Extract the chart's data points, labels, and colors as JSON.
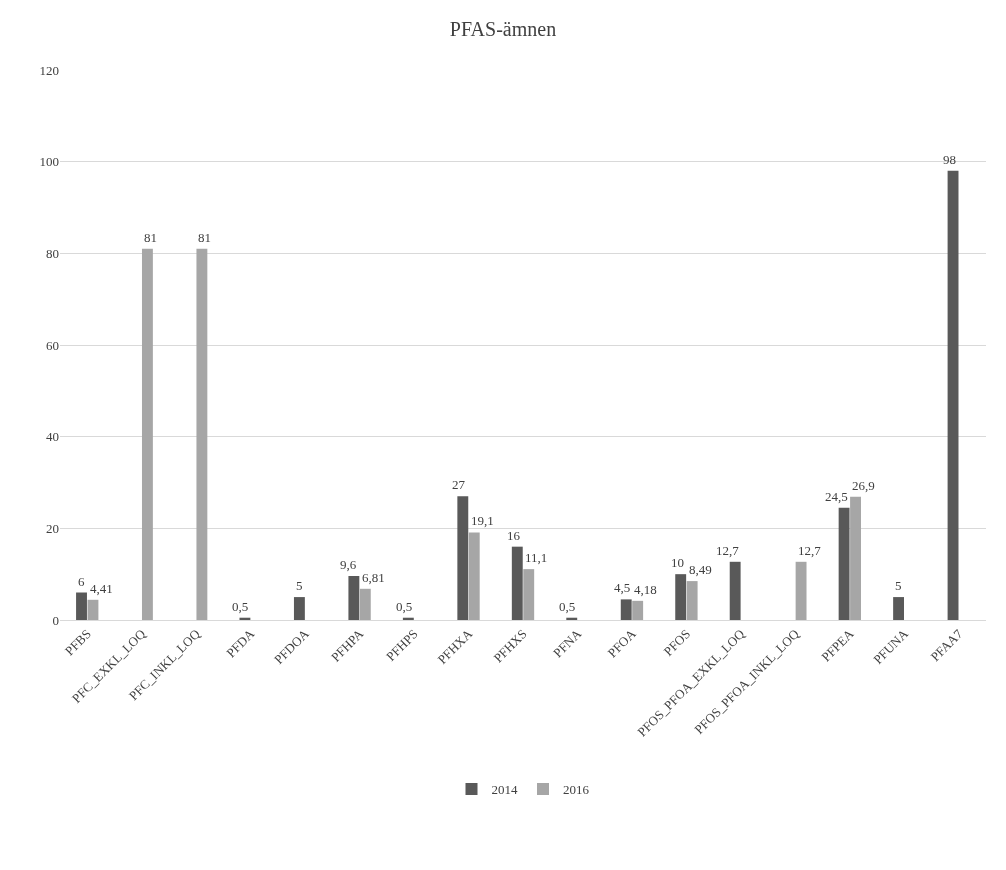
{
  "chart_data": {
    "type": "bar",
    "title": "PFAS-ämnen",
    "categories": [
      "PFBS",
      "PFC_EXKL_LOQ",
      "PFC_INKL_LOQ",
      "PFDA",
      "PFDOA",
      "PFHPA",
      "PFHPS",
      "PFHXA",
      "PFHXS",
      "PFNA",
      "PFOA",
      "PFOS",
      "PFOS_PFOA_EXKL_LOQ",
      "PFOS_PFOA_INKL_LOQ",
      "PFPEA",
      "PFUNA",
      "PFAA7"
    ],
    "series": [
      {
        "name": "2014",
        "color": "#595959",
        "values": [
          6,
          null,
          null,
          0.5,
          5,
          9.6,
          0.5,
          27,
          16,
          0.5,
          4.5,
          10,
          12.7,
          null,
          24.5,
          5,
          98
        ],
        "value_labels": [
          "6",
          null,
          null,
          "0,5",
          "5",
          "9,6",
          "0,5",
          "27",
          "16",
          "0,5",
          "4,5",
          "10",
          "12,7",
          null,
          "24,5",
          "5",
          "98"
        ]
      },
      {
        "name": "2016",
        "color": "#a6a6a6",
        "values": [
          4.41,
          81,
          81,
          null,
          null,
          6.81,
          null,
          19.1,
          11.1,
          null,
          4.18,
          8.49,
          null,
          12.7,
          26.9,
          null,
          null
        ],
        "value_labels": [
          "4,41",
          "81",
          "81",
          null,
          null,
          "6,81",
          null,
          "19,1",
          "11,1",
          null,
          "4,18",
          "8,49",
          null,
          "12,7",
          "26,9",
          null,
          null
        ]
      }
    ],
    "ylim": [
      0,
      120
    ],
    "yticks": [
      0,
      20,
      40,
      60,
      80,
      100,
      120
    ],
    "grid": "y",
    "legend": "bottom"
  }
}
